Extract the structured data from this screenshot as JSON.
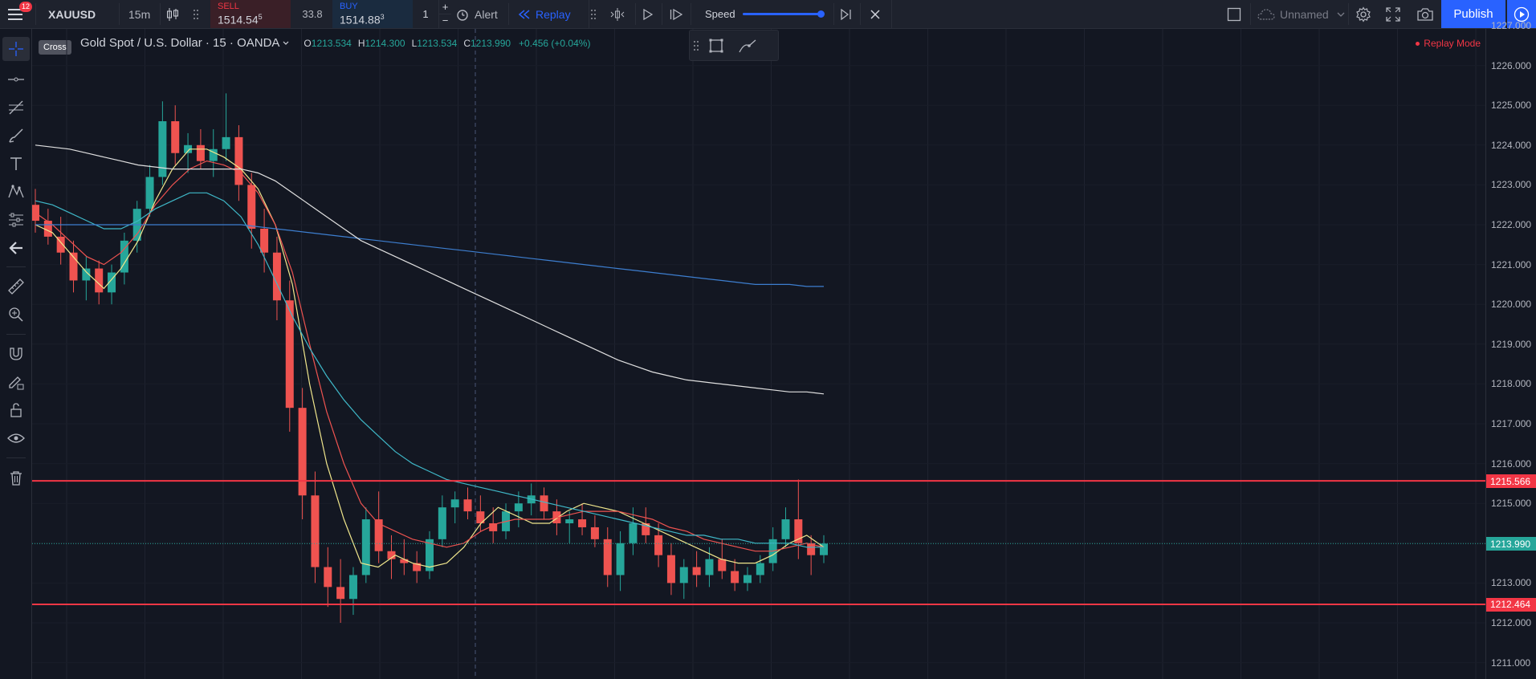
{
  "toolbar": {
    "notification_count": "12",
    "symbol": "XAUUSD",
    "interval": "15m",
    "sell_label": "SELL",
    "sell_price_main": "1514.54",
    "sell_price_sup": "5",
    "spread": "33.8",
    "buy_label": "BUY",
    "buy_price_main": "1514.88",
    "buy_price_sup": "3",
    "quantity": "1",
    "alert_label": "Alert",
    "replay_label": "Replay",
    "speed_label": "Speed",
    "speed_level": 0.97,
    "layout_name": "Unnamed",
    "publish_label": "Publish"
  },
  "legend": {
    "title": "Gold Spot / U.S. Dollar · 15 · OANDA",
    "o_label": "O",
    "o_value": "1213.534",
    "h_label": "H",
    "h_value": "1214.300",
    "l_label": "L",
    "l_value": "1213.534",
    "c_label": "C",
    "c_value": "1213.990",
    "change": "+0.456 (+0.04%)",
    "replay_mode": "Replay Mode"
  },
  "tooltip": {
    "cross": "Cross"
  },
  "price_axis": {
    "ticks": [
      "1227.000",
      "1226.000",
      "1225.000",
      "1224.000",
      "1223.000",
      "1222.000",
      "1221.000",
      "1220.000",
      "1219.000",
      "1218.000",
      "1217.000",
      "1216.000",
      "1215.000",
      "1214.000",
      "1213.000",
      "1212.000",
      "1211.000"
    ],
    "tick_values": [
      1227,
      1226,
      1225,
      1224,
      1223,
      1222,
      1221,
      1220,
      1219,
      1218,
      1217,
      1216,
      1215,
      1214,
      1213,
      1212,
      1211
    ],
    "tags": [
      {
        "label": "1215.566",
        "value": 1215.566,
        "color": "#f23645"
      },
      {
        "label": "1213.990",
        "value": 1213.99,
        "color": "#26a69a"
      },
      {
        "label": "1212.464",
        "value": 1212.464,
        "color": "#f23645"
      }
    ]
  },
  "colors": {
    "bull": "#26a69a",
    "bear": "#ef5350",
    "hline": "#f23645",
    "accent": "#2962ff",
    "ma_yellow": "#f0e68c",
    "ma_red": "#ef5350",
    "ma_cyan": "#3fb8c8",
    "ma_blue": "#3d7ecf",
    "ma_white": "#e0e0e0"
  },
  "chart_data": {
    "type": "candlestick",
    "ylim": [
      1210.6,
      1227.0
    ],
    "horizontal_lines": [
      1215.566,
      1212.464
    ],
    "last_price": 1213.99,
    "series": [
      {
        "name": "",
        "values": [
          1222.0,
          1221.8,
          1221.3,
          1220.8,
          1220.4,
          1220.9,
          1221.6,
          1222.6,
          1223.4,
          1223.9,
          1223.9,
          1223.7,
          1223.4,
          1222.9,
          1222.0,
          1220.5,
          1218.0,
          1216.0,
          1214.6,
          1213.5,
          1213.4,
          1213.7,
          1213.5,
          1213.4,
          1213.5,
          1213.9,
          1214.5,
          1214.9,
          1214.7,
          1214.5,
          1214.5,
          1214.8,
          1215.0,
          1214.9,
          1214.8,
          1214.6,
          1214.4,
          1214.2,
          1214.0,
          1213.8,
          1213.6,
          1213.5,
          1213.5,
          1213.7,
          1214.0,
          1214.2,
          1213.9
        ]
      },
      {
        "name": "",
        "values": [
          1222.3,
          1222.0,
          1221.6,
          1221.2,
          1221.0,
          1221.3,
          1221.8,
          1222.5,
          1223.0,
          1223.4,
          1223.6,
          1223.5,
          1223.3,
          1222.8,
          1222.0,
          1220.8,
          1219.0,
          1217.3,
          1216.0,
          1215.0,
          1214.5,
          1214.3,
          1214.1,
          1214.0,
          1213.9,
          1214.0,
          1214.3,
          1214.5,
          1214.6,
          1214.6,
          1214.6,
          1214.7,
          1214.8,
          1214.8,
          1214.8,
          1214.7,
          1214.6,
          1214.4,
          1214.3,
          1214.1,
          1214.0,
          1213.9,
          1213.8,
          1213.8,
          1213.9,
          1214.0,
          1213.9
        ]
      },
      {
        "name": "",
        "values": [
          1222.6,
          1222.5,
          1222.3,
          1222.1,
          1221.9,
          1221.9,
          1222.1,
          1222.4,
          1222.6,
          1222.8,
          1222.8,
          1222.6,
          1222.2,
          1221.5,
          1220.6,
          1219.7,
          1218.9,
          1218.2,
          1217.6,
          1217.1,
          1216.7,
          1216.3,
          1216.0,
          1215.8,
          1215.6,
          1215.5,
          1215.4,
          1215.3,
          1215.2,
          1215.1,
          1215.0,
          1214.9,
          1214.8,
          1214.7,
          1214.6,
          1214.5,
          1214.4,
          1214.3,
          1214.2,
          1214.2,
          1214.1,
          1214.1,
          1214.0,
          1214.0,
          1214.0,
          1213.9,
          1213.9
        ]
      },
      {
        "name": "",
        "values": [
          1222.0,
          1222.0,
          1222.0,
          1222.0,
          1222.0,
          1222.0,
          1222.0,
          1222.0,
          1222.0,
          1222.0,
          1222.0,
          1222.0,
          1222.0,
          1221.95,
          1221.9,
          1221.85,
          1221.8,
          1221.75,
          1221.7,
          1221.65,
          1221.6,
          1221.55,
          1221.5,
          1221.45,
          1221.4,
          1221.35,
          1221.3,
          1221.25,
          1221.2,
          1221.15,
          1221.1,
          1221.05,
          1221.0,
          1220.95,
          1220.9,
          1220.85,
          1220.8,
          1220.75,
          1220.7,
          1220.65,
          1220.6,
          1220.55,
          1220.5,
          1220.5,
          1220.5,
          1220.45,
          1220.45
        ]
      },
      {
        "name": "",
        "values": [
          1224.0,
          1223.95,
          1223.9,
          1223.8,
          1223.7,
          1223.6,
          1223.5,
          1223.45,
          1223.4,
          1223.4,
          1223.4,
          1223.4,
          1223.4,
          1223.3,
          1223.1,
          1222.8,
          1222.5,
          1222.2,
          1221.9,
          1221.6,
          1221.4,
          1221.2,
          1221.0,
          1220.8,
          1220.6,
          1220.4,
          1220.2,
          1220.0,
          1219.8,
          1219.6,
          1219.4,
          1219.2,
          1219.0,
          1218.8,
          1218.6,
          1218.45,
          1218.3,
          1218.2,
          1218.1,
          1218.05,
          1218.0,
          1217.95,
          1217.9,
          1217.85,
          1217.8,
          1217.8,
          1217.75
        ]
      }
    ],
    "candles": [
      [
        1222.5,
        1222.9,
        1221.8,
        1222.1
      ],
      [
        1222.1,
        1222.4,
        1221.5,
        1221.7
      ],
      [
        1221.7,
        1222.2,
        1221.0,
        1221.3
      ],
      [
        1221.3,
        1221.6,
        1220.3,
        1220.6
      ],
      [
        1220.6,
        1221.2,
        1220.1,
        1220.9
      ],
      [
        1220.9,
        1221.1,
        1220.0,
        1220.3
      ],
      [
        1220.3,
        1221.0,
        1220.0,
        1220.8
      ],
      [
        1220.8,
        1221.8,
        1220.5,
        1221.6
      ],
      [
        1221.6,
        1222.6,
        1221.3,
        1222.4
      ],
      [
        1222.4,
        1223.5,
        1222.2,
        1223.2
      ],
      [
        1223.2,
        1225.1,
        1223.0,
        1224.6
      ],
      [
        1224.6,
        1225.0,
        1223.5,
        1223.8
      ],
      [
        1223.8,
        1224.3,
        1223.3,
        1224.0
      ],
      [
        1224.0,
        1224.4,
        1223.4,
        1223.6
      ],
      [
        1223.6,
        1224.4,
        1223.2,
        1223.9
      ],
      [
        1223.9,
        1225.3,
        1223.6,
        1224.2
      ],
      [
        1224.2,
        1224.5,
        1222.6,
        1223.0
      ],
      [
        1223.0,
        1223.3,
        1221.4,
        1221.9
      ],
      [
        1221.9,
        1222.4,
        1220.8,
        1221.3
      ],
      [
        1221.3,
        1221.7,
        1219.6,
        1220.1
      ],
      [
        1220.1,
        1220.6,
        1216.8,
        1217.4
      ],
      [
        1217.4,
        1217.9,
        1214.6,
        1215.2
      ],
      [
        1215.2,
        1215.8,
        1213.0,
        1213.4
      ],
      [
        1213.4,
        1213.9,
        1212.4,
        1212.9
      ],
      [
        1212.9,
        1213.6,
        1212.0,
        1212.6
      ],
      [
        1212.6,
        1213.4,
        1212.2,
        1213.2
      ],
      [
        1213.2,
        1214.9,
        1213.0,
        1214.6
      ],
      [
        1214.6,
        1215.3,
        1213.5,
        1213.8
      ],
      [
        1213.8,
        1214.2,
        1213.1,
        1213.6
      ],
      [
        1213.6,
        1214.1,
        1213.2,
        1213.5
      ],
      [
        1213.5,
        1213.8,
        1213.0,
        1213.3
      ],
      [
        1213.3,
        1214.3,
        1213.1,
        1214.1
      ],
      [
        1214.1,
        1215.2,
        1213.9,
        1214.9
      ],
      [
        1214.9,
        1215.3,
        1214.5,
        1215.1
      ],
      [
        1215.1,
        1215.4,
        1214.6,
        1214.8
      ],
      [
        1214.8,
        1215.2,
        1214.3,
        1214.5
      ],
      [
        1214.5,
        1214.9,
        1214.0,
        1214.3
      ],
      [
        1214.3,
        1215.0,
        1214.1,
        1214.8
      ],
      [
        1214.8,
        1215.3,
        1214.4,
        1215.0
      ],
      [
        1215.0,
        1215.5,
        1214.7,
        1215.2
      ],
      [
        1215.2,
        1215.4,
        1214.6,
        1214.8
      ],
      [
        1214.8,
        1215.1,
        1214.2,
        1214.5
      ],
      [
        1214.5,
        1214.8,
        1214.0,
        1214.6
      ],
      [
        1214.6,
        1215.0,
        1214.2,
        1214.4
      ],
      [
        1214.4,
        1214.7,
        1213.9,
        1214.1
      ],
      [
        1214.1,
        1214.4,
        1212.9,
        1213.2
      ],
      [
        1213.2,
        1214.3,
        1212.8,
        1214.0
      ],
      [
        1214.0,
        1214.9,
        1213.7,
        1214.5
      ],
      [
        1214.5,
        1214.9,
        1214.0,
        1214.2
      ],
      [
        1214.2,
        1214.5,
        1213.4,
        1213.7
      ],
      [
        1213.7,
        1214.0,
        1212.7,
        1213.0
      ],
      [
        1213.0,
        1213.6,
        1212.6,
        1213.4
      ],
      [
        1213.4,
        1213.8,
        1212.9,
        1213.2
      ],
      [
        1213.2,
        1213.9,
        1212.9,
        1213.6
      ],
      [
        1213.6,
        1214.1,
        1213.1,
        1213.3
      ],
      [
        1213.3,
        1213.6,
        1212.8,
        1213.0
      ],
      [
        1213.0,
        1213.4,
        1212.8,
        1213.2
      ],
      [
        1213.2,
        1213.7,
        1213.0,
        1213.5
      ],
      [
        1213.5,
        1214.4,
        1213.3,
        1214.1
      ],
      [
        1214.1,
        1214.9,
        1213.9,
        1214.6
      ],
      [
        1214.6,
        1215.6,
        1213.6,
        1214.0
      ],
      [
        1214.0,
        1214.2,
        1213.2,
        1213.7
      ],
      [
        1213.7,
        1214.2,
        1213.5,
        1213.99
      ]
    ]
  }
}
